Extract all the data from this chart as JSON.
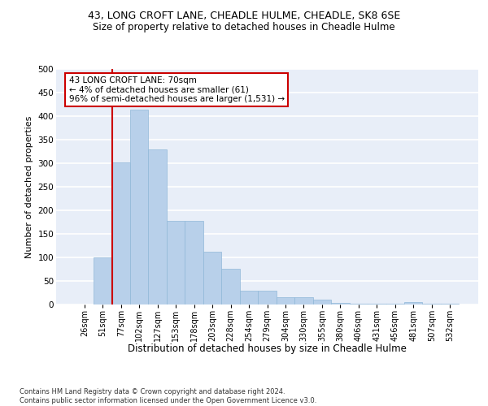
{
  "title": "43, LONG CROFT LANE, CHEADLE HULME, CHEADLE, SK8 6SE",
  "subtitle": "Size of property relative to detached houses in Cheadle Hulme",
  "xlabel": "Distribution of detached houses by size in Cheadle Hulme",
  "ylabel": "Number of detached properties",
  "bar_color": "#b8d0ea",
  "bar_edge_color": "#90b8d8",
  "annotation_box_edgecolor": "#cc0000",
  "vline_color": "#cc0000",
  "annotation_text": "43 LONG CROFT LANE: 70sqm\n← 4% of detached houses are smaller (61)\n96% of semi-detached houses are larger (1,531) →",
  "categories": [
    "26sqm",
    "51sqm",
    "77sqm",
    "102sqm",
    "127sqm",
    "153sqm",
    "178sqm",
    "203sqm",
    "228sqm",
    "254sqm",
    "279sqm",
    "304sqm",
    "330sqm",
    "355sqm",
    "380sqm",
    "406sqm",
    "431sqm",
    "456sqm",
    "481sqm",
    "507sqm",
    "532sqm"
  ],
  "values": [
    0,
    100,
    302,
    413,
    330,
    178,
    178,
    112,
    76,
    30,
    30,
    15,
    15,
    10,
    4,
    2,
    2,
    1,
    6,
    1,
    1
  ],
  "vline_position": 1.5,
  "ylim": [
    0,
    500
  ],
  "yticks": [
    0,
    50,
    100,
    150,
    200,
    250,
    300,
    350,
    400,
    450,
    500
  ],
  "footer": "Contains HM Land Registry data © Crown copyright and database right 2024.\nContains public sector information licensed under the Open Government Licence v3.0.",
  "bg_color": "#e8eef8",
  "grid_color": "#ffffff"
}
